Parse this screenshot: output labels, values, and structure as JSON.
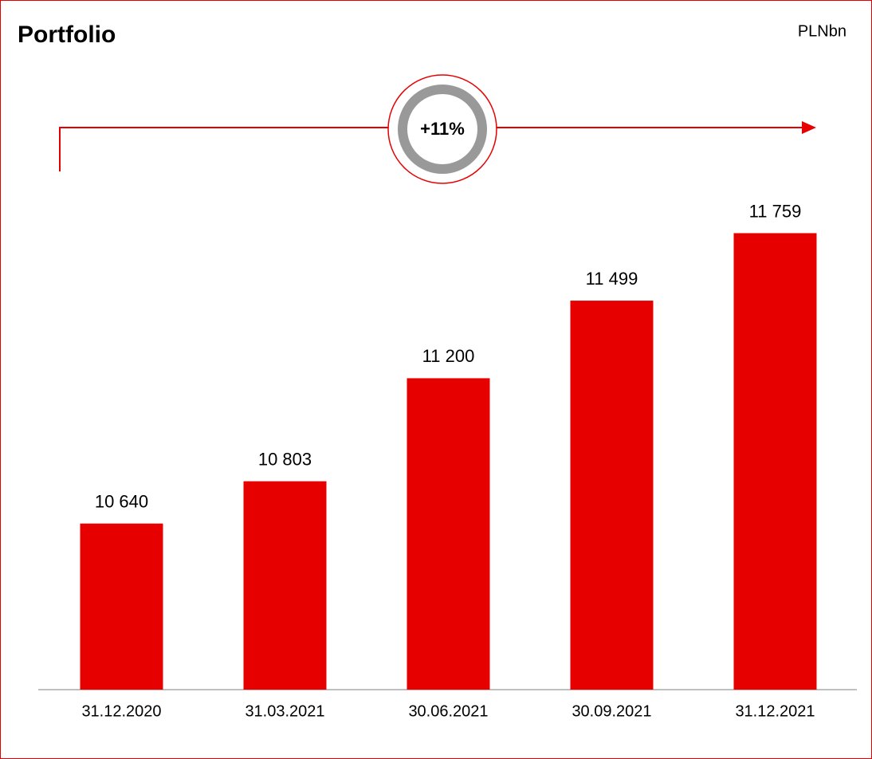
{
  "chart_data": {
    "type": "bar",
    "title": "Portfolio",
    "unit": "PLNbn",
    "annotation": "+11%",
    "categories": [
      "31.12.2020",
      "31.03.2021",
      "30.06.2021",
      "30.09.2021",
      "31.12.2021"
    ],
    "values": [
      10640,
      10803,
      11200,
      11499,
      11759
    ],
    "value_labels": [
      "10 640",
      "10 803",
      "11 200",
      "11 499",
      "11 759"
    ],
    "color": "#e60000",
    "ylim": [
      10000,
      12000
    ]
  }
}
